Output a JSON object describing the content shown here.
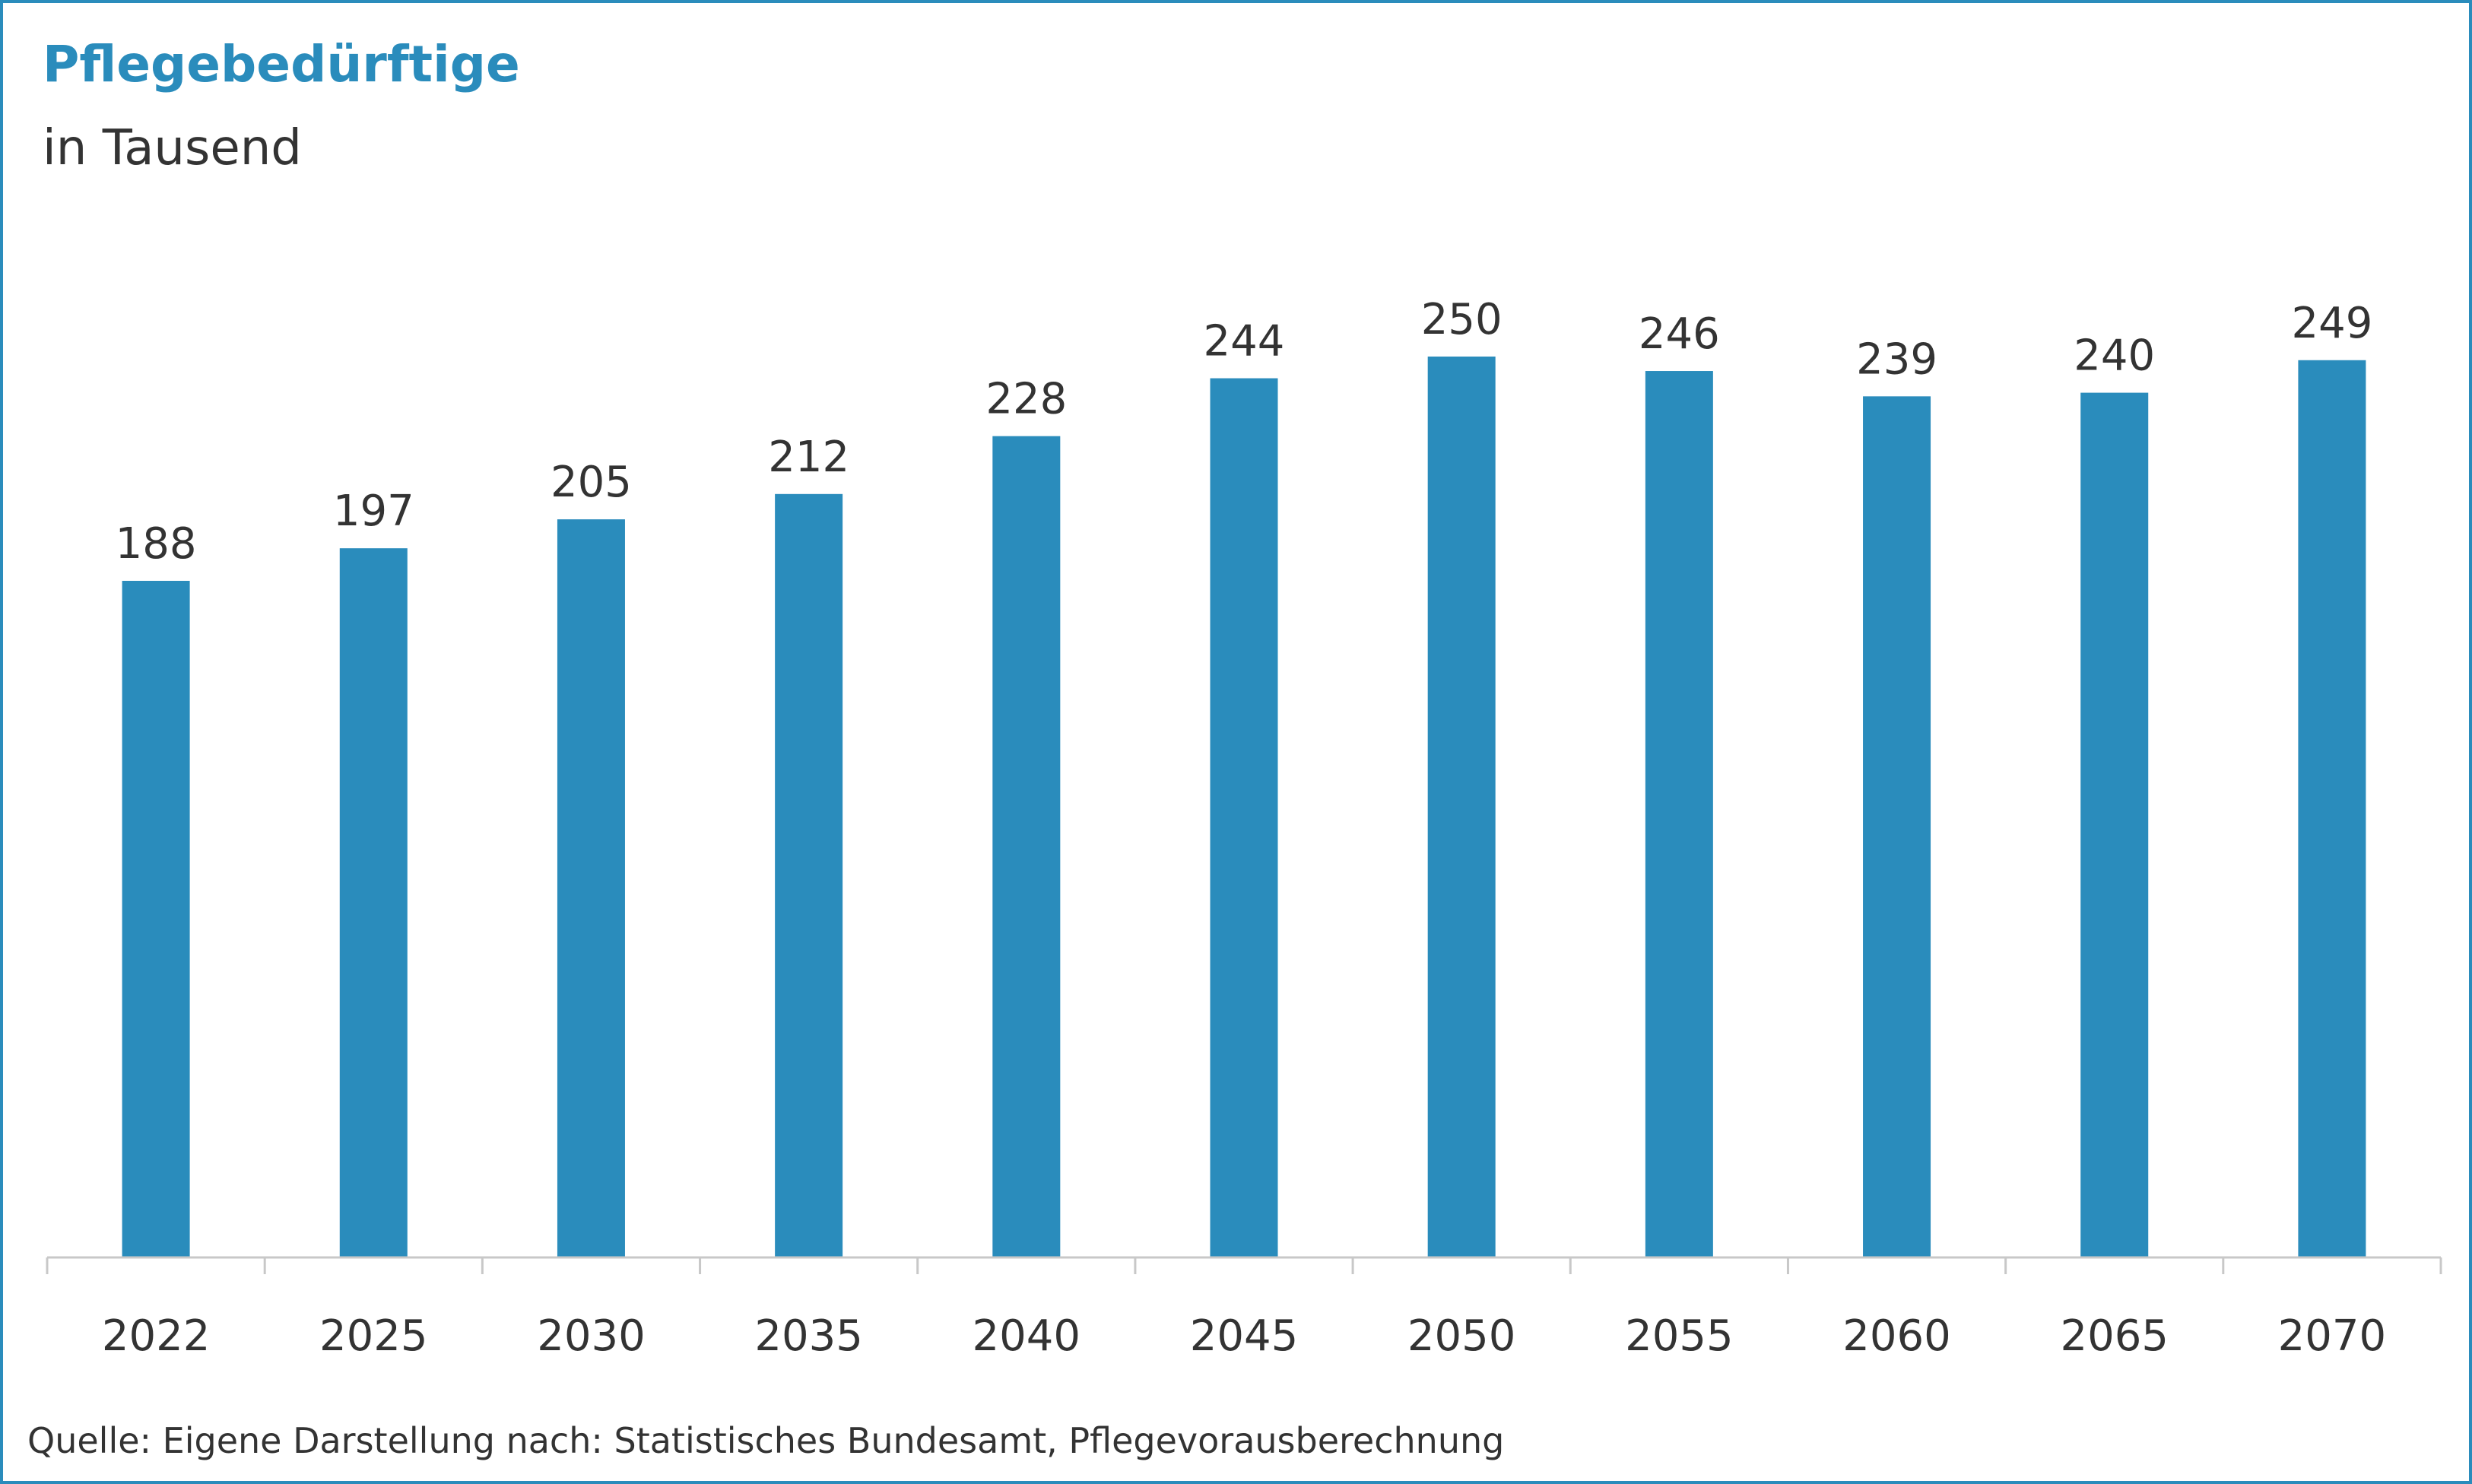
{
  "title": "Pflegebedürftige",
  "subtitle": "in Tausend",
  "source": "Quelle: Eigene Darstellung nach: Statistisches Bundesamt, Pflegevorausberechnung",
  "colors": {
    "bar": "#2a8cbc",
    "title": "#2a8cbc",
    "text": "#333333",
    "border": "#2a8cbc",
    "axis": "#c8c8c8"
  },
  "chart_data": {
    "type": "bar",
    "categories": [
      "2022",
      "2025",
      "2030",
      "2035",
      "2040",
      "2045",
      "2050",
      "2055",
      "2060",
      "2065",
      "2070"
    ],
    "values": [
      188,
      197,
      205,
      212,
      228,
      244,
      250,
      246,
      239,
      240,
      249
    ],
    "data_labels": [
      "188",
      "197",
      "205",
      "212",
      "228",
      "244",
      "250",
      "246",
      "239",
      "240",
      "249"
    ],
    "title": "Pflegebedürftige",
    "ylabel": "in Tausend",
    "xlabel": "",
    "ylim": [
      0,
      250
    ],
    "grid": false,
    "legend": "none"
  }
}
